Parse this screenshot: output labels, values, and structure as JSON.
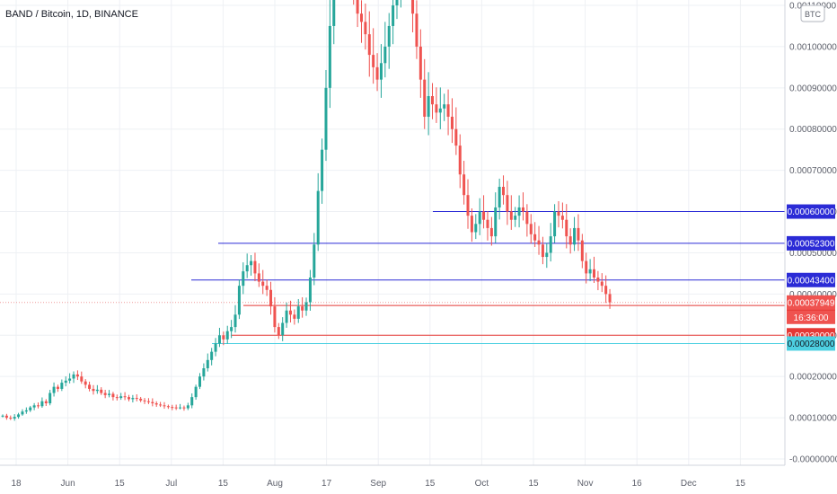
{
  "title": "BAND / Bitcoin, 1D, BINANCE",
  "currency_badge": "BTC",
  "colors": {
    "up": "#26a69a",
    "down": "#ef5350",
    "blue_line": "#2b2bd6",
    "red_line": "#e53935",
    "cyan_line": "#4dd0e1",
    "grid": "#eef0f4",
    "axis_text": "#5d606b"
  },
  "chart_data": {
    "type": "candlestick",
    "x_ticks": [
      "18",
      "Jun",
      "15",
      "Jul",
      "15",
      "Aug",
      "17",
      "Sep",
      "15",
      "Oct",
      "15",
      "Nov",
      "16",
      "Dec",
      "15"
    ],
    "y_ticks": [
      "0.00110000",
      "0.00100000",
      "0.00090000",
      "0.00080000",
      "0.00070000",
      "0.00060000",
      "0.00050000",
      "0.00040000",
      "0.00030000",
      "0.00020000",
      "0.00010000",
      "-0.00000000"
    ],
    "ylim": [
      -1e-05,
      0.00111
    ],
    "grid": true,
    "horizontal_levels": [
      {
        "label": "0.00060000",
        "value": 0.0006,
        "kind": "blue"
      },
      {
        "label": "0.00052300",
        "value": 0.000523,
        "kind": "blue"
      },
      {
        "label": "0.00043400",
        "value": 0.000434,
        "kind": "blue"
      },
      {
        "label": "0.00037230",
        "value": 0.0003723,
        "kind": "red"
      },
      {
        "label": "0.00030000",
        "value": 0.0003,
        "kind": "red"
      },
      {
        "label": "0.00028000",
        "value": 0.00028,
        "kind": "cyan"
      }
    ],
    "last_price": {
      "label": "0.00037949",
      "value": 0.00037949,
      "countdown": "16:36:00"
    },
    "closes": [
      0.000105,
      0.0001,
      9.8e-05,
      0.000102,
      0.000108,
      0.000115,
      0.000118,
      0.000125,
      0.00013,
      0.000128,
      0.00014,
      0.000135,
      0.00016,
      0.000175,
      0.00017,
      0.000185,
      0.00019,
      0.000195,
      0.000205,
      0.0002,
      0.000188,
      0.00018,
      0.00017,
      0.000165,
      0.000168,
      0.00016,
      0.000155,
      0.000158,
      0.00015,
      0.000148,
      0.000152,
      0.00015,
      0.000145,
      0.000148,
      0.000146,
      0.000142,
      0.00014,
      0.000138,
      0.000135,
      0.000132,
      0.00013,
      0.000128,
      0.000126,
      0.000125,
      0.000124,
      0.000125,
      0.000123,
      0.00013,
      0.00015,
      0.000175,
      0.0002,
      0.00022,
      0.00024,
      0.00026,
      0.00028,
      0.0003,
      0.00029,
      0.00031,
      0.00032,
      0.00035,
      0.00042,
      0.000455,
      0.00047,
      0.00048,
      0.00045,
      0.00043,
      0.00042,
      0.00041,
      0.00037,
      0.00032,
      0.0003,
      0.00033,
      0.00036,
      0.00035,
      0.00034,
      0.00037,
      0.00036,
      0.00038,
      0.00044,
      0.00052,
      0.00065,
      0.00075,
      0.0009,
      0.00105,
      0.0012,
      0.00135,
      0.0013,
      0.0014,
      0.0012,
      0.00115,
      0.00108,
      0.00106,
      0.00103,
      0.00098,
      0.00095,
      0.00092,
      0.00096,
      0.001,
      0.00105,
      0.0011,
      0.00115,
      0.00118,
      0.0012,
      0.00118,
      0.00108,
      0.001,
      0.00092,
      0.00083,
      0.00088,
      0.00086,
      0.00084,
      0.00085,
      0.00086,
      0.00083,
      0.0008,
      0.00076,
      0.00069,
      0.00064,
      0.00059,
      0.00055,
      0.00057,
      0.0006,
      0.00058,
      0.00056,
      0.00054,
      0.00061,
      0.00066,
      0.00064,
      0.0006,
      0.00058,
      0.00059,
      0.00061,
      0.0006,
      0.00057,
      0.000545,
      0.00053,
      0.00052,
      0.00049,
      0.0005,
      0.00054,
      0.0006,
      0.00059,
      0.00058,
      0.00054,
      0.00052,
      0.00056,
      0.00053,
      0.00048,
      0.00045,
      0.00046,
      0.00044,
      0.00043,
      0.00042,
      0.0004,
      0.00038
    ]
  }
}
